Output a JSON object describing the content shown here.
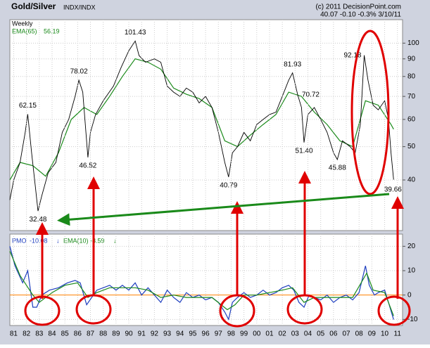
{
  "header": {
    "title": "Gold/Silver",
    "symbol": "INDX/INDX",
    "copyright": "(c) 2011 DecisionPoint.com",
    "quote": "40.07 -0.10 -0.3% 3/10/11",
    "period": "Weekly"
  },
  "chart_data": [
    {
      "type": "line",
      "log_scale": true,
      "grid": true,
      "xlim": [
        1981.2,
        2011.9
      ],
      "ylim": [
        28.5,
        117
      ],
      "yticks": [
        40,
        50,
        60,
        70,
        80,
        90,
        100
      ],
      "series": [
        {
          "name": "EMA(65)",
          "color": "#1a8a1a",
          "x": [
            1981.2,
            1982,
            1983,
            1984,
            1985,
            1986,
            1987,
            1988,
            1989,
            1990,
            1991,
            1992,
            1993,
            1994,
            1995,
            1996,
            1997,
            1998,
            1999,
            2000,
            2001,
            2002,
            2003,
            2004,
            2005,
            2006,
            2007,
            2008,
            2009,
            2010,
            2011,
            2011.2
          ],
          "values": [
            40,
            45,
            44,
            41,
            48,
            60,
            65,
            62,
            70,
            80,
            90,
            88,
            84,
            74,
            71,
            69,
            65,
            52,
            50,
            54,
            58,
            62,
            72,
            70,
            63,
            58,
            52,
            50,
            68,
            66,
            58,
            56.19
          ]
        },
        {
          "name": "Gold/Silver",
          "color": "#000000",
          "x": [
            1981.2,
            1981.5,
            1982.0,
            1982.4,
            1982.6,
            1982.9,
            1983.2,
            1983.4,
            1983.7,
            1984.2,
            1984.8,
            1985.3,
            1985.8,
            1986.3,
            1986.6,
            1986.9,
            1987.3,
            1987.5,
            1987.9,
            1988.5,
            1989.3,
            1989.9,
            1990.5,
            1991.0,
            1991.3,
            1991.8,
            1992.5,
            1993.0,
            1993.5,
            1994.0,
            1994.5,
            1995.0,
            1995.5,
            1996.0,
            1996.5,
            1997.0,
            1997.5,
            1998.0,
            1998.3,
            1998.6,
            1999.0,
            1999.5,
            2000.0,
            2000.5,
            2001.0,
            2001.5,
            2002.0,
            2002.5,
            2003.0,
            2003.3,
            2003.7,
            2004.0,
            2004.2,
            2004.5,
            2005.0,
            2005.5,
            2006.0,
            2006.5,
            2006.8,
            2007.2,
            2007.8,
            2008.2,
            2008.6,
            2008.9,
            2009.2,
            2009.6,
            2010.0,
            2010.5,
            2010.8,
            2011.0,
            2011.2
          ],
          "values": [
            35,
            40,
            45,
            55,
            62.15,
            48,
            38,
            32.48,
            36,
            42,
            45,
            55,
            60,
            70,
            78.02,
            72,
            46.52,
            55,
            62,
            68,
            75,
            85,
            95,
            101.43,
            92,
            88,
            90,
            88,
            75,
            72,
            70,
            74,
            72,
            67,
            70,
            65,
            55,
            45,
            40.79,
            48,
            50,
            55,
            52,
            58,
            60,
            62,
            63,
            70,
            78,
            81.93,
            70.72,
            65,
            51.4,
            62,
            65,
            60,
            55,
            48,
            45.88,
            52,
            50,
            48,
            58,
            92.18,
            78,
            66,
            64,
            68,
            60,
            48,
            40.07
          ]
        }
      ],
      "annotations": [
        {
          "x": 1982.6,
          "value": 62.15,
          "label": "62.15",
          "pos": "above"
        },
        {
          "x": 1983.4,
          "value": 32.48,
          "label": "32.48",
          "pos": "below"
        },
        {
          "x": 1986.6,
          "value": 78.02,
          "label": "78.02",
          "pos": "above"
        },
        {
          "x": 1987.3,
          "value": 46.52,
          "label": "46.52",
          "pos": "below"
        },
        {
          "x": 1991.0,
          "value": 101.43,
          "label": "101.43",
          "pos": "above"
        },
        {
          "x": 1998.3,
          "value": 40.79,
          "label": "40.79",
          "pos": "below"
        },
        {
          "x": 2003.3,
          "value": 81.93,
          "label": "81.93",
          "pos": "above"
        },
        {
          "x": 2003.7,
          "value": 70.72,
          "label": "70.72",
          "pos": "right"
        },
        {
          "x": 2004.2,
          "value": 51.4,
          "label": "51.40",
          "pos": "below"
        },
        {
          "x": 2006.8,
          "value": 45.88,
          "label": "45.88",
          "pos": "below"
        },
        {
          "x": 2008.9,
          "value": 92.18,
          "label": "92.18",
          "pos": "left"
        },
        {
          "x": 2011.15,
          "value": 39.66,
          "label": "39.66",
          "pos": "below"
        }
      ]
    },
    {
      "type": "line",
      "grid": true,
      "zero_line_color": "#ff8000",
      "xlim": [
        1981.2,
        2011.9
      ],
      "ylim": [
        -12.5,
        25
      ],
      "yticks": [
        -10,
        0,
        10,
        20
      ],
      "xticks": [
        {
          "value": 1981.5,
          "label": "81"
        },
        {
          "value": 1982.5,
          "label": "82"
        },
        {
          "value": 1983.5,
          "label": "83"
        },
        {
          "value": 1984.5,
          "label": "84"
        },
        {
          "value": 1985.5,
          "label": "85"
        },
        {
          "value": 1986.5,
          "label": "86"
        },
        {
          "value": 1987.5,
          "label": "87"
        },
        {
          "value": 1988.5,
          "label": "88"
        },
        {
          "value": 1989.5,
          "label": "89"
        },
        {
          "value": 1990.5,
          "label": "90"
        },
        {
          "value": 1991.5,
          "label": "91"
        },
        {
          "value": 1992.5,
          "label": "92"
        },
        {
          "value": 1993.5,
          "label": "93"
        },
        {
          "value": 1994.5,
          "label": "94"
        },
        {
          "value": 1995.5,
          "label": "95"
        },
        {
          "value": 1996.5,
          "label": "96"
        },
        {
          "value": 1997.5,
          "label": "97"
        },
        {
          "value": 1998.5,
          "label": "98"
        },
        {
          "value": 1999.5,
          "label": "99"
        },
        {
          "value": 2000.5,
          "label": "00"
        },
        {
          "value": 2001.5,
          "label": "01"
        },
        {
          "value": 2002.5,
          "label": "02"
        },
        {
          "value": 2003.5,
          "label": "03"
        },
        {
          "value": 2004.5,
          "label": "04"
        },
        {
          "value": 2005.5,
          "label": "05"
        },
        {
          "value": 2006.5,
          "label": "06"
        },
        {
          "value": 2007.5,
          "label": "07"
        },
        {
          "value": 2008.5,
          "label": "08"
        },
        {
          "value": 2009.5,
          "label": "09"
        },
        {
          "value": 2010.5,
          "label": "10"
        },
        {
          "value": 2011.5,
          "label": "11"
        }
      ],
      "series": [
        {
          "name": "PMO",
          "color": "#1f3fbf",
          "x": [
            1981.2,
            1981.6,
            1982.2,
            1982.6,
            1983.0,
            1983.3,
            1983.7,
            1984.3,
            1985,
            1985.7,
            1986.3,
            1986.7,
            1987.2,
            1987.6,
            1988,
            1988.5,
            1989,
            1989.5,
            1990,
            1990.5,
            1991,
            1991.5,
            1992,
            1992.5,
            1993,
            1993.5,
            1994,
            1994.5,
            1995,
            1995.5,
            1996,
            1996.5,
            1997,
            1997.5,
            1998.0,
            1998.3,
            1998.6,
            1999,
            1999.5,
            2000,
            2000.5,
            2001,
            2001.5,
            2002,
            2002.5,
            2003,
            2003.4,
            2003.8,
            2004.2,
            2004.6,
            2005,
            2005.5,
            2006,
            2006.5,
            2007,
            2007.5,
            2008,
            2008.5,
            2009.0,
            2009.3,
            2009.7,
            2010,
            2010.5,
            2010.8,
            2011.2
          ],
          "values": [
            20,
            12,
            5,
            10,
            -5,
            -5,
            0,
            2,
            3,
            5,
            6,
            5,
            -4,
            -1,
            2,
            3,
            4,
            2,
            4,
            2,
            5,
            0,
            3,
            0,
            -3,
            2,
            -1,
            -3,
            1,
            -1,
            0,
            -2,
            -1,
            -3,
            -7,
            -10,
            -3,
            -1,
            1,
            -1,
            0,
            2,
            0,
            1,
            3,
            4,
            2,
            -3,
            -5,
            0,
            -1,
            -2,
            0,
            -3,
            -1,
            0,
            -2,
            1,
            12,
            4,
            0,
            1,
            2,
            -3,
            -10.08
          ]
        },
        {
          "name": "EMA(10)",
          "color": "#1a8a1a",
          "x": [
            1981.2,
            1982,
            1983,
            1983.5,
            1984.5,
            1985.5,
            1986.5,
            1987.3,
            1988,
            1989,
            1990,
            1991,
            1992,
            1993,
            1994,
            1995,
            1996,
            1997,
            1998.2,
            1998.8,
            1999.5,
            2000.5,
            2001.5,
            2002.5,
            2003.3,
            2004.2,
            2005,
            2006,
            2007,
            2008,
            2009.1,
            2009.6,
            2010.5,
            2011.2
          ],
          "values": [
            18,
            8,
            0,
            -3,
            1,
            4,
            5,
            -1,
            1,
            3,
            3,
            3,
            2,
            -1,
            0,
            -1,
            -1,
            -1,
            -6,
            -4,
            0,
            0,
            1,
            2,
            3,
            -3,
            -1,
            -1,
            -1,
            -1,
            9,
            2,
            1,
            -8.59
          ]
        }
      ]
    }
  ]
}
